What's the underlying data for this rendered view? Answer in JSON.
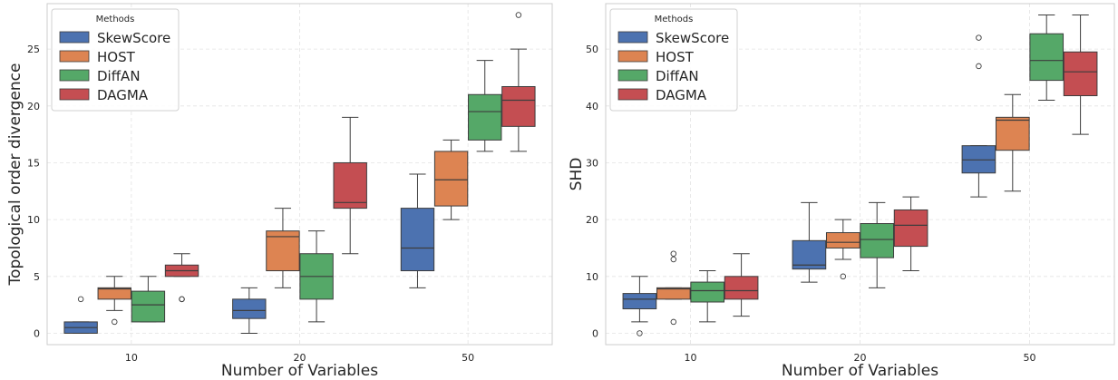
{
  "chart_data": [
    {
      "type": "box",
      "xlabel": "Number of Variables",
      "ylabel": "Topological order divergence",
      "ylim": [
        -1,
        29
      ],
      "yticks": [
        0,
        5,
        10,
        15,
        20,
        25
      ],
      "grid": true,
      "legend": {
        "title": "Methods",
        "position": "top-left"
      },
      "categories": [
        "10",
        "20",
        "50"
      ],
      "series": [
        {
          "name": "SkewScore",
          "color": "#4c72b0",
          "boxes": [
            {
              "whislo": 0,
              "q1": 0,
              "med": 0.5,
              "q3": 1,
              "whishi": 1,
              "fliers": [
                3
              ]
            },
            {
              "whislo": 0,
              "q1": 1.3,
              "med": 2,
              "q3": 3,
              "whishi": 4,
              "fliers": []
            },
            {
              "whislo": 4,
              "q1": 5.5,
              "med": 7.5,
              "q3": 11,
              "whishi": 14,
              "fliers": []
            }
          ]
        },
        {
          "name": "HOST",
          "color": "#dd8452",
          "boxes": [
            {
              "whislo": 2,
              "q1": 3,
              "med": 3.9,
              "q3": 4,
              "whishi": 5,
              "fliers": [
                1
              ]
            },
            {
              "whislo": 4,
              "q1": 5.5,
              "med": 8.5,
              "q3": 9,
              "whishi": 11,
              "fliers": []
            },
            {
              "whislo": 10,
              "q1": 11.2,
              "med": 13.5,
              "q3": 16,
              "whishi": 17,
              "fliers": []
            }
          ]
        },
        {
          "name": "DiffAN",
          "color": "#55a868",
          "boxes": [
            {
              "whislo": 1,
              "q1": 1,
              "med": 2.5,
              "q3": 3.7,
              "whishi": 5,
              "fliers": []
            },
            {
              "whislo": 1,
              "q1": 3,
              "med": 5,
              "q3": 7,
              "whishi": 9,
              "fliers": []
            },
            {
              "whislo": 16,
              "q1": 17,
              "med": 19.5,
              "q3": 21,
              "whishi": 24,
              "fliers": []
            }
          ]
        },
        {
          "name": "DAGMA",
          "color": "#c44e52",
          "boxes": [
            {
              "whislo": 5,
              "q1": 5,
              "med": 5.5,
              "q3": 6,
              "whishi": 7,
              "fliers": [
                3,
                3
              ]
            },
            {
              "whislo": 7,
              "q1": 11,
              "med": 11.5,
              "q3": 15,
              "whishi": 19,
              "fliers": []
            },
            {
              "whislo": 16,
              "q1": 18.2,
              "med": 20.5,
              "q3": 21.7,
              "whishi": 25,
              "fliers": [
                28
              ]
            }
          ]
        }
      ]
    },
    {
      "type": "box",
      "xlabel": "Number of Variables",
      "ylabel": "SHD",
      "ylim": [
        -2,
        58
      ],
      "yticks": [
        0,
        10,
        20,
        30,
        40,
        50
      ],
      "grid": true,
      "legend": {
        "title": "Methods",
        "position": "top-left"
      },
      "categories": [
        "10",
        "20",
        "50"
      ],
      "series": [
        {
          "name": "SkewScore",
          "color": "#4c72b0",
          "boxes": [
            {
              "whislo": 2,
              "q1": 4.3,
              "med": 6,
              "q3": 7,
              "whishi": 10,
              "fliers": [
                0
              ]
            },
            {
              "whislo": 9,
              "q1": 11.3,
              "med": 12,
              "q3": 16.3,
              "whishi": 23,
              "fliers": []
            },
            {
              "whislo": 24,
              "q1": 28.2,
              "med": 30.5,
              "q3": 33,
              "whishi": 33,
              "fliers": [
                52,
                47
              ]
            }
          ]
        },
        {
          "name": "HOST",
          "color": "#dd8452",
          "boxes": [
            {
              "whislo": 6,
              "q1": 6,
              "med": 7.8,
              "q3": 8,
              "whishi": 8,
              "fliers": [
                14,
                13,
                2
              ]
            },
            {
              "whislo": 13,
              "q1": 15,
              "med": 16,
              "q3": 17.7,
              "whishi": 20,
              "fliers": [
                10
              ]
            },
            {
              "whislo": 25,
              "q1": 32.2,
              "med": 37.5,
              "q3": 38,
              "whishi": 42,
              "fliers": []
            }
          ]
        },
        {
          "name": "DiffAN",
          "color": "#55a868",
          "boxes": [
            {
              "whislo": 2,
              "q1": 5.5,
              "med": 7.5,
              "q3": 9,
              "whishi": 11,
              "fliers": []
            },
            {
              "whislo": 8,
              "q1": 13.3,
              "med": 16.5,
              "q3": 19.3,
              "whishi": 23,
              "fliers": []
            },
            {
              "whislo": 41,
              "q1": 44.5,
              "med": 48,
              "q3": 52.7,
              "whishi": 56,
              "fliers": []
            }
          ]
        },
        {
          "name": "DAGMA",
          "color": "#c44e52",
          "boxes": [
            {
              "whislo": 3,
              "q1": 6,
              "med": 7.5,
              "q3": 10,
              "whishi": 14,
              "fliers": []
            },
            {
              "whislo": 11,
              "q1": 15.3,
              "med": 19,
              "q3": 21.7,
              "whishi": 24,
              "fliers": []
            },
            {
              "whislo": 35,
              "q1": 41.8,
              "med": 46,
              "q3": 49.5,
              "whishi": 56,
              "fliers": []
            }
          ]
        }
      ]
    }
  ]
}
